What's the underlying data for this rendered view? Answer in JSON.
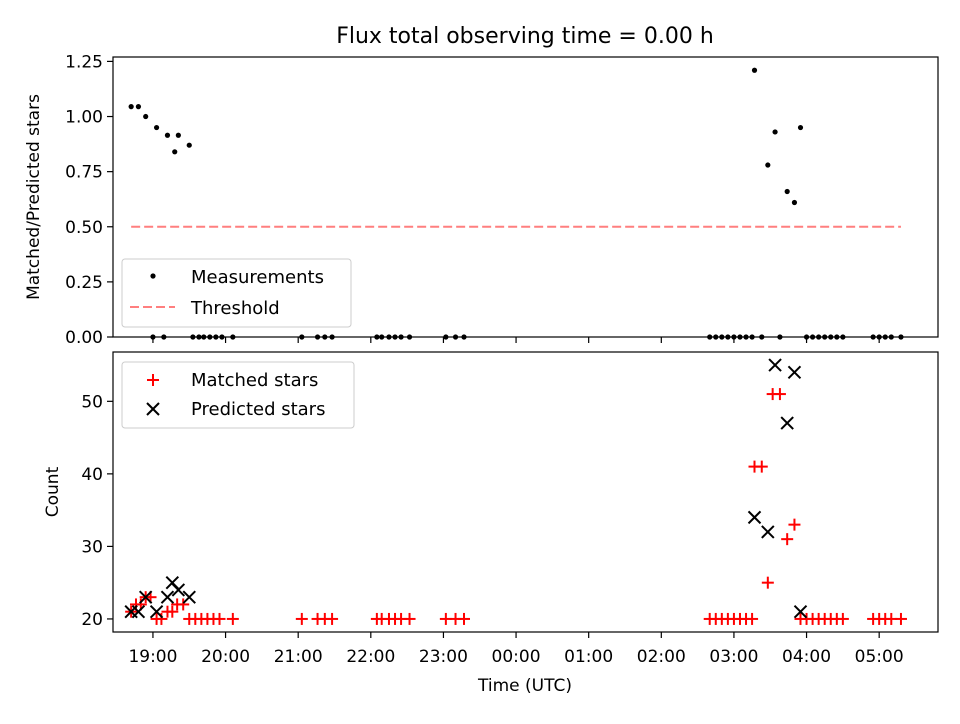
{
  "chart_data": [
    {
      "type": "scatter",
      "title": "Flux total observing time = 0.00 h",
      "xlabel": "",
      "ylabel": "Matched/Predicted stars",
      "ylim": [
        0,
        1.27
      ],
      "yticks": [
        0.0,
        0.25,
        0.5,
        0.75,
        1.0,
        1.25
      ],
      "ytick_labels": [
        "0.00",
        "0.25",
        "0.50",
        "0.75",
        "1.00",
        "1.25"
      ],
      "legend_position": "lower-left",
      "series": [
        {
          "name": "Measurements",
          "marker": "dot",
          "color": "#000000",
          "points": [
            [
              "18:42",
              1.045
            ],
            [
              "18:48",
              1.045
            ],
            [
              "18:54",
              1.0
            ],
            [
              "19:00",
              0.0
            ],
            [
              "19:03",
              0.95
            ],
            [
              "19:09",
              0.0
            ],
            [
              "19:12",
              0.915
            ],
            [
              "19:18",
              0.84
            ],
            [
              "19:21",
              0.915
            ],
            [
              "19:30",
              0.87
            ],
            [
              "19:33",
              0.0
            ],
            [
              "19:38",
              0.0
            ],
            [
              "19:42",
              0.0
            ],
            [
              "19:47",
              0.0
            ],
            [
              "19:52",
              0.0
            ],
            [
              "19:57",
              0.0
            ],
            [
              "20:06",
              0.0
            ],
            [
              "21:03",
              0.0
            ],
            [
              "21:16",
              0.0
            ],
            [
              "21:22",
              0.0
            ],
            [
              "21:28",
              0.0
            ],
            [
              "22:05",
              0.0
            ],
            [
              "22:09",
              0.0
            ],
            [
              "22:15",
              0.0
            ],
            [
              "22:20",
              0.0
            ],
            [
              "22:25",
              0.0
            ],
            [
              "22:32",
              0.0
            ],
            [
              "23:02",
              0.0
            ],
            [
              "23:10",
              0.0
            ],
            [
              "23:17",
              0.0
            ],
            [
              "02:40",
              0.0
            ],
            [
              "02:45",
              0.0
            ],
            [
              "02:50",
              0.0
            ],
            [
              "02:55",
              0.0
            ],
            [
              "03:00",
              0.0
            ],
            [
              "03:05",
              0.0
            ],
            [
              "03:10",
              0.0
            ],
            [
              "03:15",
              0.0
            ],
            [
              "03:17",
              1.21
            ],
            [
              "03:23",
              0.0
            ],
            [
              "03:28",
              0.78
            ],
            [
              "03:34",
              0.93
            ],
            [
              "03:38",
              0.0
            ],
            [
              "03:44",
              0.66
            ],
            [
              "03:50",
              0.61
            ],
            [
              "03:55",
              0.95
            ],
            [
              "04:00",
              0.0
            ],
            [
              "04:05",
              0.0
            ],
            [
              "04:10",
              0.0
            ],
            [
              "04:15",
              0.0
            ],
            [
              "04:20",
              0.0
            ],
            [
              "04:25",
              0.0
            ],
            [
              "04:30",
              0.0
            ],
            [
              "04:55",
              0.0
            ],
            [
              "05:00",
              0.0
            ],
            [
              "05:05",
              0.0
            ],
            [
              "05:10",
              0.0
            ],
            [
              "05:18",
              0.0
            ]
          ]
        },
        {
          "name": "Threshold",
          "marker": "dashed-line",
          "color": "#ff7f7f",
          "points": [
            [
              "18:42",
              0.5
            ],
            [
              "05:18",
              0.5
            ]
          ]
        }
      ]
    },
    {
      "type": "scatter",
      "title": "",
      "xlabel": "Time (UTC)",
      "ylabel": "Count",
      "ylim": [
        18.2,
        56.8
      ],
      "yticks": [
        20,
        30,
        40,
        50
      ],
      "ytick_labels": [
        "20",
        "30",
        "40",
        "50"
      ],
      "xticks": [
        "19:00",
        "20:00",
        "21:00",
        "22:00",
        "23:00",
        "00:00",
        "01:00",
        "02:00",
        "03:00",
        "04:00",
        "05:00"
      ],
      "legend_position": "top-left",
      "series": [
        {
          "name": "Matched stars",
          "marker": "plus",
          "color": "#ff0000",
          "points": [
            [
              "18:42",
              21
            ],
            [
              "18:46",
              22
            ],
            [
              "18:50",
              22
            ],
            [
              "18:54",
              23
            ],
            [
              "18:58",
              23
            ],
            [
              "19:03",
              20
            ],
            [
              "19:07",
              20
            ],
            [
              "19:12",
              21
            ],
            [
              "19:16",
              21
            ],
            [
              "19:20",
              22
            ],
            [
              "19:25",
              22
            ],
            [
              "19:30",
              20
            ],
            [
              "19:35",
              20
            ],
            [
              "19:40",
              20
            ],
            [
              "19:45",
              20
            ],
            [
              "19:50",
              20
            ],
            [
              "19:55",
              20
            ],
            [
              "20:06",
              20
            ],
            [
              "21:03",
              20
            ],
            [
              "21:16",
              20
            ],
            [
              "21:22",
              20
            ],
            [
              "21:28",
              20
            ],
            [
              "22:05",
              20
            ],
            [
              "22:09",
              20
            ],
            [
              "22:15",
              20
            ],
            [
              "22:20",
              20
            ],
            [
              "22:25",
              20
            ],
            [
              "22:32",
              20
            ],
            [
              "23:02",
              20
            ],
            [
              "23:10",
              20
            ],
            [
              "23:17",
              20
            ],
            [
              "02:40",
              20
            ],
            [
              "02:45",
              20
            ],
            [
              "02:50",
              20
            ],
            [
              "02:55",
              20
            ],
            [
              "03:00",
              20
            ],
            [
              "03:05",
              20
            ],
            [
              "03:10",
              20
            ],
            [
              "03:15",
              20
            ],
            [
              "03:17",
              41
            ],
            [
              "03:23",
              41
            ],
            [
              "03:28",
              25
            ],
            [
              "03:32",
              51
            ],
            [
              "03:38",
              51
            ],
            [
              "03:44",
              31
            ],
            [
              "03:50",
              33
            ],
            [
              "03:55",
              20
            ],
            [
              "04:00",
              20
            ],
            [
              "04:05",
              20
            ],
            [
              "04:10",
              20
            ],
            [
              "04:15",
              20
            ],
            [
              "04:20",
              20
            ],
            [
              "04:25",
              20
            ],
            [
              "04:30",
              20
            ],
            [
              "04:55",
              20
            ],
            [
              "05:00",
              20
            ],
            [
              "05:05",
              20
            ],
            [
              "05:10",
              20
            ],
            [
              "05:18",
              20
            ]
          ]
        },
        {
          "name": "Predicted stars",
          "marker": "x",
          "color": "#000000",
          "points": [
            [
              "18:42",
              21
            ],
            [
              "18:48",
              21
            ],
            [
              "18:54",
              23
            ],
            [
              "19:03",
              21
            ],
            [
              "19:12",
              23
            ],
            [
              "19:16",
              25
            ],
            [
              "19:21",
              24
            ],
            [
              "19:30",
              23
            ],
            [
              "03:17",
              34
            ],
            [
              "03:28",
              32
            ],
            [
              "03:34",
              55
            ],
            [
              "03:44",
              47
            ],
            [
              "03:50",
              54
            ],
            [
              "03:55",
              21
            ]
          ]
        }
      ]
    }
  ]
}
